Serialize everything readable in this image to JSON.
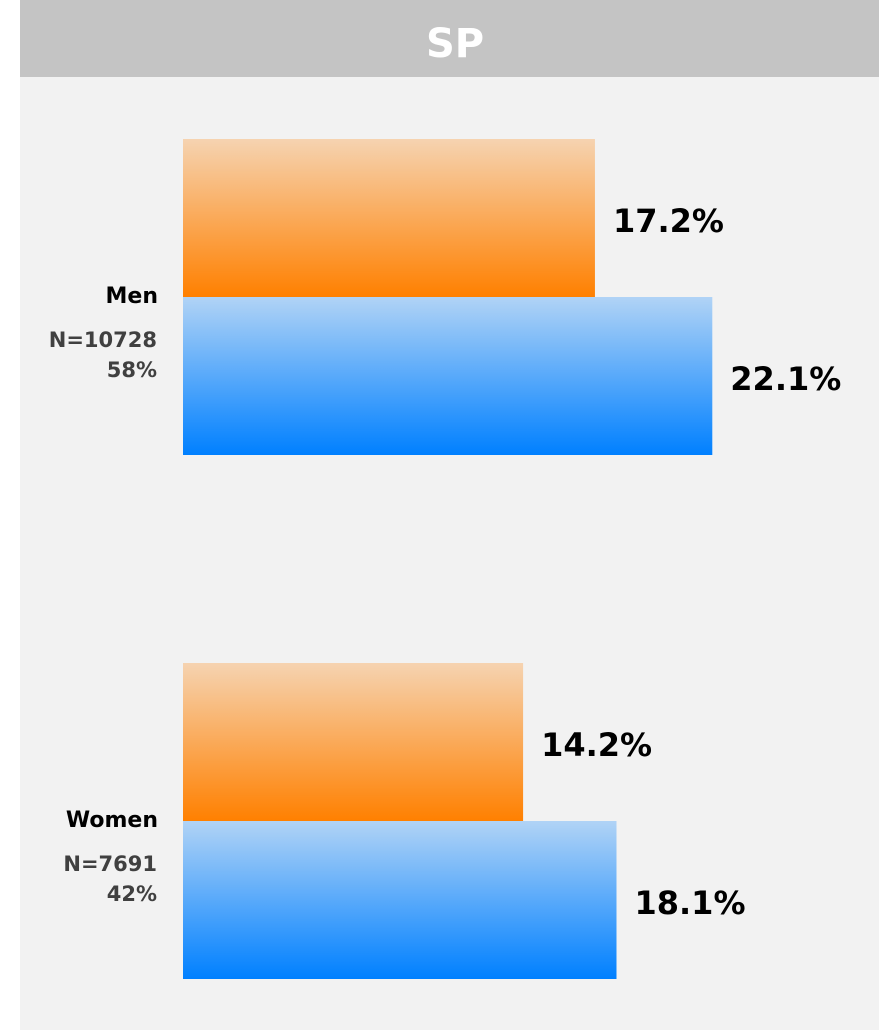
{
  "chart_data": {
    "type": "hbar",
    "title": "SP",
    "categories": [
      "Men",
      "Women"
    ],
    "category_notes": [
      [
        "N=10728",
        "58%"
      ],
      [
        "N=7691",
        "42%"
      ]
    ],
    "series": [
      {
        "color": "#ff8000",
        "values": [
          17.2,
          14.2
        ],
        "value_labels": [
          "17.2%",
          "14.2%"
        ]
      },
      {
        "color": "#0080ff",
        "values": [
          22.1,
          18.1
        ],
        "value_labels": [
          "22.1%",
          "18.1%"
        ]
      }
    ]
  }
}
